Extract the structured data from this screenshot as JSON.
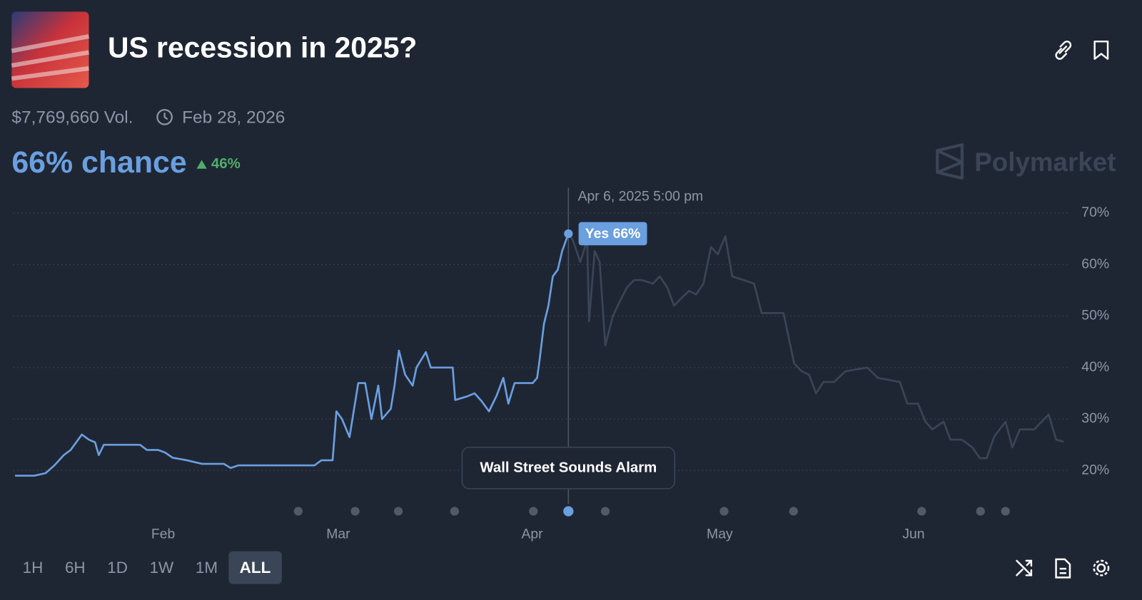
{
  "header": {
    "title": "US recession in 2025?",
    "volume": "$7,769,660 Vol.",
    "end_date": "Feb 28, 2026",
    "chance": "66% chance",
    "change": "46%",
    "brand": "Polymarket"
  },
  "chart_data": {
    "type": "line",
    "x": [
      8.3,
      11.4,
      13.2,
      14.6,
      16.1,
      17.2,
      19.0,
      20.1,
      21.1,
      21.7,
      22.5,
      28.3,
      29.4,
      31.2,
      32.3,
      33.5,
      35.8,
      38.2,
      41.7,
      42.8,
      44.0,
      56.2,
      57.3,
      59.1,
      59.7,
      60.6,
      61.8,
      63.2,
      64.3,
      65.3,
      66.4,
      67.0,
      68.4,
      69.0,
      69.7,
      70.7,
      71.9,
      72.5,
      74.0,
      74.8,
      78.3,
      78.7,
      80.6,
      81.8,
      82.9,
      84.1,
      85.3,
      86.4,
      87.2,
      88.2,
      91.1,
      91.8,
      92.2,
      92.9,
      93.6,
      94.3,
      95.1,
      95.8,
      96.8,
      97.5,
      98.7,
      99.8,
      100.1,
      101.0,
      101.8,
      102.7,
      103.9,
      105.0,
      106.2,
      107.3,
      108.5,
      110.3,
      111.4,
      112.6,
      113.7,
      114.9,
      116.1,
      117.2,
      118.4,
      119.6,
      120.7,
      121.9,
      123.0,
      124.8,
      126.5,
      127.7,
      131.2,
      132.9,
      134.1,
      135.3,
      136.4,
      137.6,
      139.3,
      141.1,
      144.6,
      146.3,
      149.8,
      151.0,
      152.7,
      153.9,
      155.0,
      156.8,
      157.9,
      159.7,
      161.4,
      162.6,
      163.7,
      164.9,
      166.7,
      167.8,
      169.0,
      171.3,
      173.6,
      174.8,
      176.0
    ],
    "values": [
      19,
      19,
      19.5,
      21,
      23,
      24,
      27,
      26,
      25.5,
      23,
      25,
      25,
      24,
      24,
      23.5,
      22.5,
      22,
      21.3,
      21.3,
      20.5,
      21,
      21,
      22,
      22,
      31.5,
      30,
      26.5,
      37,
      37,
      30,
      36.5,
      30,
      32,
      36.5,
      43.3,
      38.6,
      36.5,
      40,
      43,
      40,
      40,
      33.7,
      34.4,
      35,
      33.5,
      31.5,
      34.5,
      38,
      33,
      37,
      37,
      38,
      41.5,
      48.5,
      52,
      57.7,
      59,
      62.6,
      66,
      64.8,
      60.5,
      64.8,
      49,
      62.6,
      60.5,
      44.3,
      50,
      52.8,
      55.6,
      57,
      57,
      56.3,
      57.7,
      55.6,
      52,
      53.5,
      54.9,
      54.2,
      56.3,
      63.4,
      62,
      65.5,
      57.7,
      57,
      56.3,
      50.6,
      50.6,
      40.8,
      39.3,
      38.6,
      35,
      37.2,
      37.2,
      39.3,
      40,
      38,
      37.2,
      33,
      33,
      29.5,
      28,
      29.5,
      26,
      26,
      24.5,
      22.4,
      22.4,
      26.6,
      29.5,
      24.5,
      28,
      28,
      30.9,
      26,
      25.6
    ],
    "color": "#6a9fe0",
    "future_color": "#3a4556",
    "xlim": [
      8,
      178
    ],
    "ylim": [
      14,
      75
    ],
    "xticks": [
      {
        "value": 32,
        "label": "Feb"
      },
      {
        "value": 60,
        "label": "Mar"
      },
      {
        "value": 91,
        "label": "Apr"
      },
      {
        "value": 121,
        "label": "May"
      },
      {
        "value": 152,
        "label": "Jun"
      }
    ],
    "yticks": [
      {
        "value": 20,
        "label": "20%"
      },
      {
        "value": 30,
        "label": "30%"
      },
      {
        "value": 40,
        "label": "40%"
      },
      {
        "value": 50,
        "label": "50%"
      },
      {
        "value": 60,
        "label": "60%"
      },
      {
        "value": 70,
        "label": "70%"
      }
    ],
    "grid": true,
    "hover": {
      "x": 96.8,
      "date": "Apr 6, 2025 5:00 pm",
      "value": 66,
      "label": "Yes 66%"
    },
    "events": [
      {
        "x": 53.6
      },
      {
        "x": 62.7
      },
      {
        "x": 69.6
      },
      {
        "x": 78.6
      },
      {
        "x": 91.2
      },
      {
        "x": 96.8,
        "title": "Wall Street Sounds Alarm"
      },
      {
        "x": 102.7
      },
      {
        "x": 121.7
      },
      {
        "x": 132.8
      },
      {
        "x": 153.3
      },
      {
        "x": 162.7
      },
      {
        "x": 166.7
      }
    ]
  },
  "ranges": {
    "options": [
      "1H",
      "6H",
      "1D",
      "1W",
      "1M",
      "ALL"
    ],
    "active": 5
  }
}
